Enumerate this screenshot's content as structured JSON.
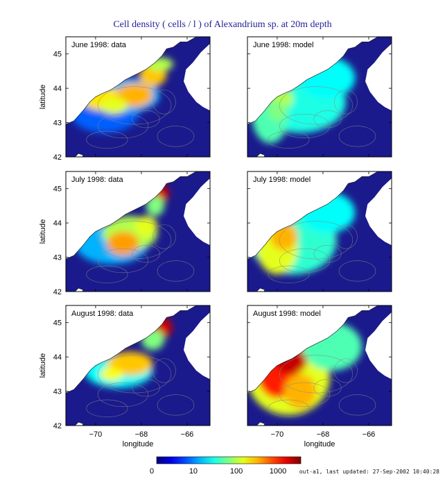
{
  "title": "Cell density ( cells / l ) of Alexandrium sp. at 20m depth",
  "footer": "out-a1, last updated: 27-Sep-2002 10:40:28",
  "colors": {
    "land": "#ffffff",
    "deep": "#1a1a8c",
    "scale": [
      "#0000a0",
      "#0040ff",
      "#00c0ff",
      "#40ffc0",
      "#c0ff40",
      "#ffc000",
      "#ff4000",
      "#a00000"
    ]
  },
  "chart_data": {
    "type": "heatmap",
    "xlabel": "longitude",
    "ylabel": "latitude",
    "xticks": [
      -70,
      -68,
      -66
    ],
    "yticks": [
      42,
      43,
      44,
      45
    ],
    "xlim": [
      -71.3,
      -65.0
    ],
    "ylim": [
      42,
      45.5
    ],
    "panels": [
      {
        "label": "June 1998: data",
        "month": "June 1998",
        "kind": "data",
        "peak_level": 0.72
      },
      {
        "label": "June 1998: model",
        "month": "June 1998",
        "kind": "model",
        "peak_level": 0.55
      },
      {
        "label": "July 1998: data",
        "month": "July 1998",
        "kind": "data",
        "peak_level": 0.92
      },
      {
        "label": "July 1998: model",
        "month": "July 1998",
        "kind": "model",
        "peak_level": 0.72
      },
      {
        "label": "August 1998: data",
        "month": "August 1998",
        "kind": "data",
        "peak_level": 0.92
      },
      {
        "label": "August 1998: model",
        "month": "August 1998",
        "kind": "model",
        "peak_level": 0.93
      }
    ],
    "colorbar": {
      "scale": "log",
      "tick_values": [
        0,
        10,
        100,
        1000
      ],
      "tick_labels": [
        "0",
        "10",
        "100",
        "1000"
      ]
    }
  }
}
